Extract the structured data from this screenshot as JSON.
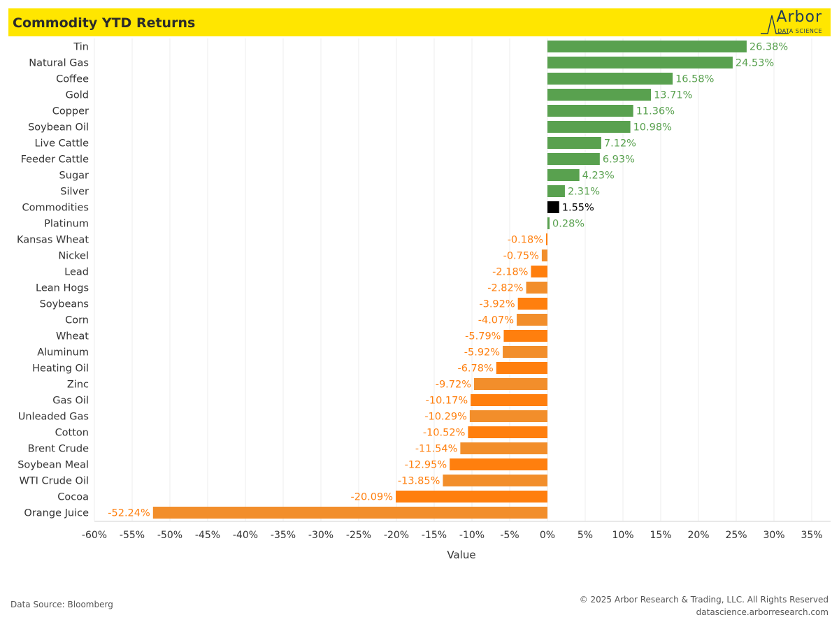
{
  "header": {
    "title": "Commodity YTD Returns",
    "logo_word": "Arbor",
    "logo_sub": "DATA SCIENCE"
  },
  "colors": {
    "positive": "#59a14f",
    "negative": "#ff7f0e",
    "negative_alt": "#f28e2b",
    "highlight": "#000000",
    "header_bg": "#ffe600"
  },
  "chart_data": {
    "type": "bar",
    "orientation": "horizontal",
    "categories": [
      "Tin",
      "Natural Gas",
      "Coffee",
      "Gold",
      "Copper",
      "Soybean Oil",
      "Live Cattle",
      "Feeder Cattle",
      "Sugar",
      "Silver",
      "Commodities",
      "Platinum",
      "Kansas Wheat",
      "Nickel",
      "Lead",
      "Lean Hogs",
      "Soybeans",
      "Corn",
      "Wheat",
      "Aluminum",
      "Heating Oil",
      "Zinc",
      "Gas Oil",
      "Unleaded Gas",
      "Cotton",
      "Brent Crude",
      "Soybean Meal",
      "WTI Crude Oil",
      "Cocoa",
      "Orange Juice"
    ],
    "values": [
      26.38,
      24.53,
      16.58,
      13.71,
      11.36,
      10.98,
      7.12,
      6.93,
      4.23,
      2.31,
      1.55,
      0.28,
      -0.18,
      -0.75,
      -2.18,
      -2.82,
      -3.92,
      -4.07,
      -5.79,
      -5.92,
      -6.78,
      -9.72,
      -10.17,
      -10.29,
      -10.52,
      -11.54,
      -12.95,
      -13.85,
      -20.09,
      -52.24
    ],
    "data_labels": [
      "26.38%",
      "24.53%",
      "16.58%",
      "13.71%",
      "11.36%",
      "10.98%",
      "7.12%",
      "6.93%",
      "4.23%",
      "2.31%",
      "1.55%",
      "0.28%",
      "-0.18%",
      "-0.75%",
      "-2.18%",
      "-2.82%",
      "-3.92%",
      "-4.07%",
      "-5.79%",
      "-5.92%",
      "-6.78%",
      "-9.72%",
      "-10.17%",
      "-10.29%",
      "-10.52%",
      "-11.54%",
      "-12.95%",
      "-13.85%",
      "-20.09%",
      "-52.24%"
    ],
    "highlight_category": "Commodities",
    "xlabel": "Value",
    "xlim": [
      -60,
      35
    ],
    "xticks": [
      -60,
      -55,
      -50,
      -45,
      -40,
      -35,
      -30,
      -25,
      -20,
      -15,
      -10,
      -5,
      0,
      5,
      10,
      15,
      20,
      25,
      30,
      35
    ],
    "xtick_labels": [
      "-60%",
      "-55%",
      "-50%",
      "-45%",
      "-40%",
      "-35%",
      "-30%",
      "-25%",
      "-20%",
      "-15%",
      "-10%",
      "-5%",
      "0%",
      "5%",
      "10%",
      "15%",
      "20%",
      "25%",
      "30%",
      "35%"
    ],
    "grid": "vertical"
  },
  "footer": {
    "source": "Data Source: Bloomberg",
    "copyright": "© 2025 Arbor Research & Trading, LLC. All Rights Reserved",
    "website": "datascience.arborresearch.com"
  }
}
